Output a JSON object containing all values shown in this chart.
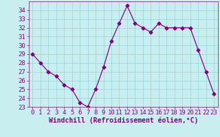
{
  "x": [
    0,
    1,
    2,
    3,
    4,
    5,
    6,
    7,
    8,
    9,
    10,
    11,
    12,
    13,
    14,
    15,
    16,
    17,
    18,
    19,
    20,
    21,
    22,
    23
  ],
  "y": [
    29,
    28,
    27,
    26.5,
    25.5,
    25,
    23.5,
    23,
    25,
    27.5,
    30.5,
    32.5,
    34.5,
    32.5,
    32,
    31.5,
    32.5,
    32,
    32,
    32,
    32,
    29.5,
    27,
    24.5
  ],
  "line_color": "#800080",
  "marker": "D",
  "marker_size": 2.5,
  "bg_color": "#c8eef0",
  "grid_color": "#98d8dc",
  "xlabel": "Windchill (Refroidissement éolien,°C)",
  "ylim": [
    23,
    35
  ],
  "xlim": [
    -0.5,
    23.5
  ],
  "yticks": [
    23,
    24,
    25,
    26,
    27,
    28,
    29,
    30,
    31,
    32,
    33,
    34
  ],
  "xticks": [
    0,
    1,
    2,
    3,
    4,
    5,
    6,
    7,
    8,
    9,
    10,
    11,
    12,
    13,
    14,
    15,
    16,
    17,
    18,
    19,
    20,
    21,
    22,
    23
  ],
  "tick_color": "#800080",
  "label_color": "#800080",
  "font_size": 6.5,
  "xlabel_fontsize": 7
}
